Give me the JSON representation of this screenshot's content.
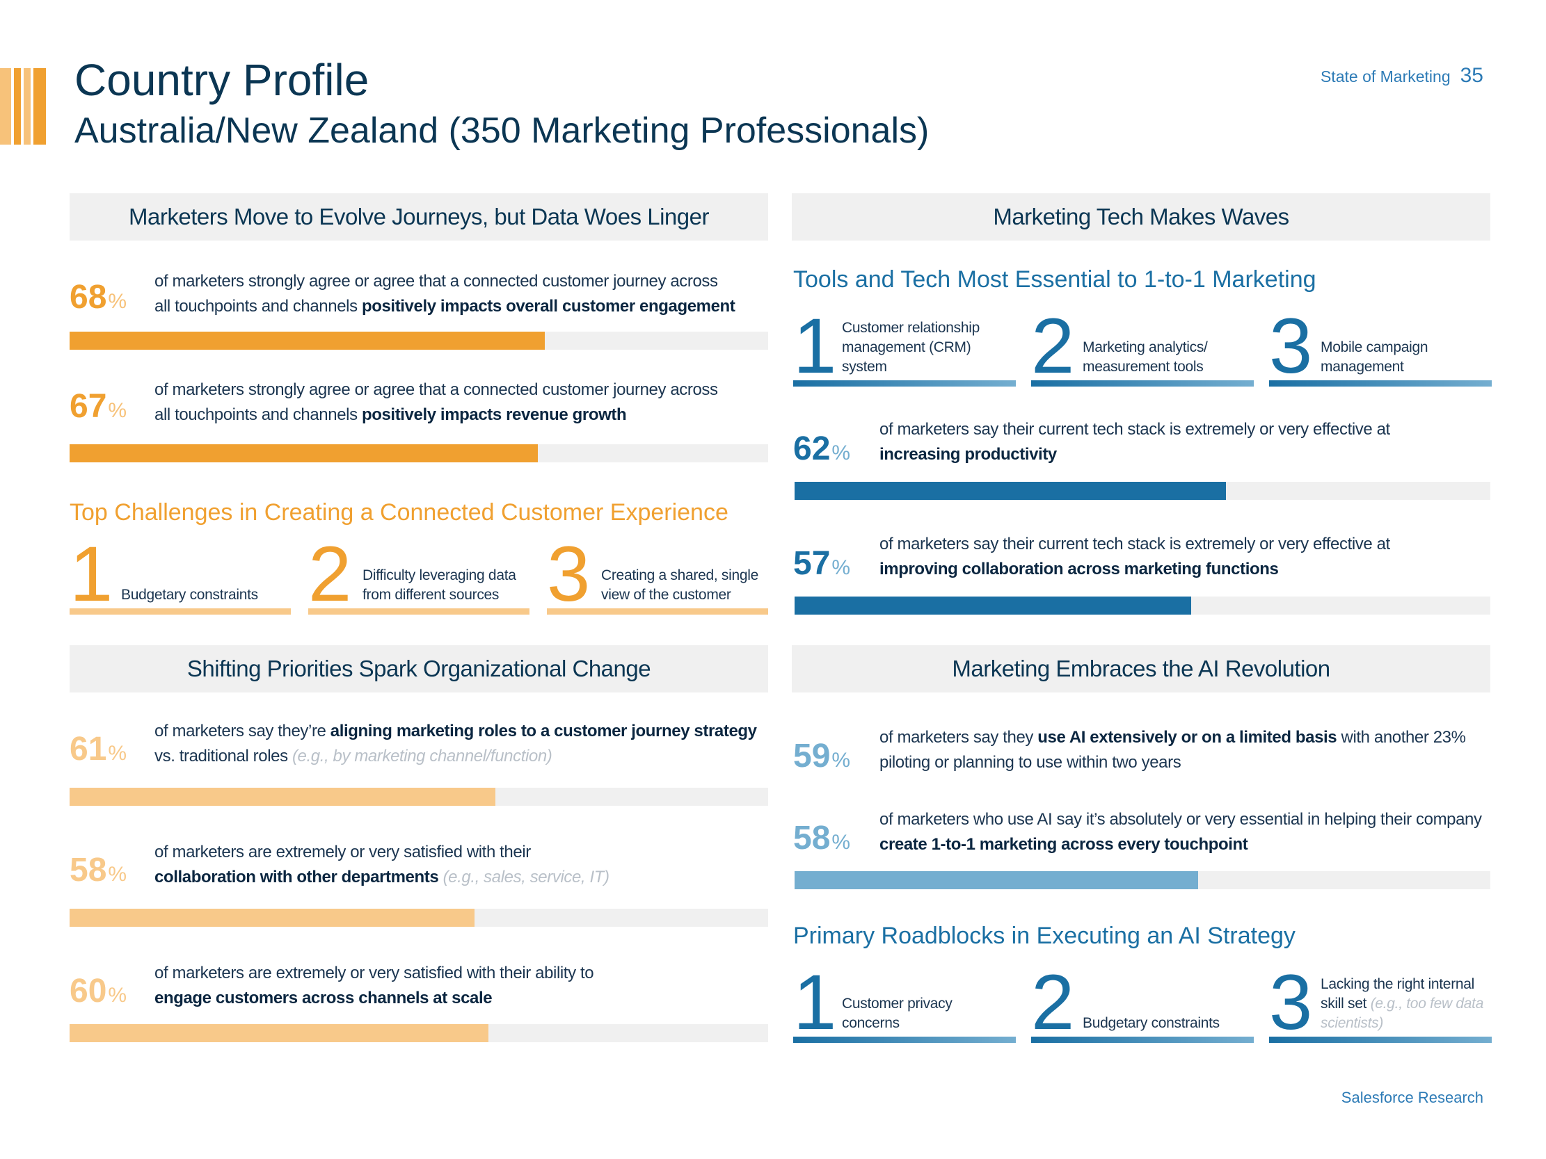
{
  "header": {
    "title": "Country Profile",
    "subtitle": "Australia/New Zealand (350 Marketing Professionals)",
    "running_head": "State of Marketing",
    "page_number": "35"
  },
  "footer": {
    "source": "Salesforce Research"
  },
  "colors": {
    "orange": "#f0a030",
    "light_orange": "#f8c98a",
    "blue": "#1a6fa3",
    "light_blue": "#74aed0",
    "navy": "#0b3653"
  },
  "journeys": {
    "banner": "Marketers Move to Evolve Journeys, but Data Woes Linger",
    "stats": [
      {
        "pct": "68",
        "value": 0.68,
        "line1": "of marketers strongly agree or agree that a connected customer journey across",
        "line2_pre": "all touchpoints and channels ",
        "line2_bold": "positively impacts overall customer engagement"
      },
      {
        "pct": "67",
        "value": 0.67,
        "line1": "of marketers strongly agree or agree that a connected customer journey across",
        "line2_pre": "all touchpoints and channels ",
        "line2_bold": "positively impacts revenue growth"
      }
    ],
    "challenges_title": "Top Challenges in Creating a Connected Customer Experience",
    "challenges": [
      {
        "num": "1",
        "line1": "Budgetary constraints",
        "line2": ""
      },
      {
        "num": "2",
        "line1": "Difficulty leveraging data",
        "line2": "from different sources"
      },
      {
        "num": "3",
        "line1": "Creating a shared, single",
        "line2": "view of the customer"
      }
    ]
  },
  "tech": {
    "banner": "Marketing Tech Makes Waves",
    "tools_title": "Tools and Tech Most Essential to 1-to-1 Marketing",
    "tools": [
      {
        "num": "1",
        "line1": "Customer relationship",
        "line2": "management (CRM)",
        "line3": "system"
      },
      {
        "num": "2",
        "line1": "Marketing analytics/",
        "line2": "measurement tools"
      },
      {
        "num": "3",
        "line1": "Mobile campaign",
        "line2": "management"
      }
    ],
    "stats": [
      {
        "pct": "62",
        "value": 0.62,
        "line1": "of marketers say their current tech stack is extremely or very effective at",
        "line2_bold": "increasing productivity"
      },
      {
        "pct": "57",
        "value": 0.57,
        "line1": "of marketers say their current tech stack is extremely or very effective at",
        "line2_bold": "improving collaboration across marketing functions"
      }
    ]
  },
  "org": {
    "banner": "Shifting Priorities Spark Organizational Change",
    "stats": [
      {
        "pct": "61",
        "value": 0.61,
        "line1_pre": "of marketers say they’re ",
        "line1_bold": "aligning marketing roles to a customer journey strategy",
        "line2_pre": "vs. traditional roles ",
        "line2_italic": "(e.g., by marketing channel/function)"
      },
      {
        "pct": "58",
        "value": 0.58,
        "line1_pre": "of marketers are extremely or very satisfied with their",
        "line2_bold": "collaboration with other departments",
        "line2_italic": " (e.g., sales, service, IT)"
      },
      {
        "pct": "60",
        "value": 0.6,
        "line1_pre": "of marketers are extremely or very satisfied with their ability to",
        "line2_bold": "engage customers across channels at scale"
      }
    ]
  },
  "ai": {
    "banner": "Marketing Embraces the AI Revolution",
    "stats": [
      {
        "pct": "59",
        "line1_pre": "of marketers say they ",
        "line1_bold": "use AI extensively or on a limited basis",
        "line1_post": " with another 23%",
        "line2": "piloting or planning to use within two years"
      },
      {
        "pct": "58",
        "value": 0.58,
        "line1": "of marketers who use AI say it’s absolutely or very essential in helping their company",
        "line2_bold": "create 1-to-1 marketing across every touchpoint"
      }
    ],
    "roadblocks_title": "Primary Roadblocks in Executing an AI Strategy",
    "roadblocks": [
      {
        "num": "1",
        "line1": "Customer privacy",
        "line2": "concerns"
      },
      {
        "num": "2",
        "line1": "Budgetary constraints"
      },
      {
        "num": "3",
        "line1": "Lacking the right internal",
        "line2_pre": "skill set ",
        "line2_italic": "(e.g., too few data",
        "line3_italic": "scientists)"
      }
    ]
  }
}
